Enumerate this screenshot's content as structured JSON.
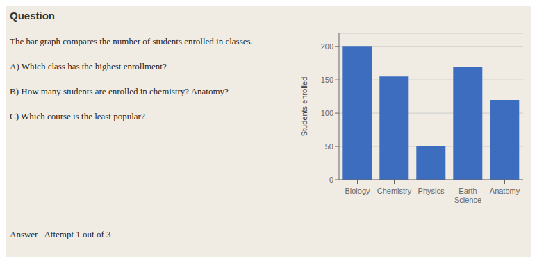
{
  "chart_data": {
    "type": "bar",
    "title": "Question",
    "annotations": [
      "The bar graph compares the number of students enrolled in classes.",
      "A) Which class has the highest enrollment?",
      "B) How many students are enrolled in chemistry? Anatomy?",
      "C) Which course is the least popular?",
      "Answer   Attempt 1 out of 3"
    ],
    "ylabel": "Students enrolled",
    "categories": [
      "Biology",
      "Chemistry",
      "Physics",
      "Earth Science",
      "Anatomy"
    ],
    "values": [
      200,
      155,
      50,
      170,
      120
    ],
    "color": "#3D6DBF",
    "ylim": [
      0,
      220
    ],
    "yticks": [
      0,
      50,
      100,
      150,
      200
    ],
    "grid": true
  }
}
